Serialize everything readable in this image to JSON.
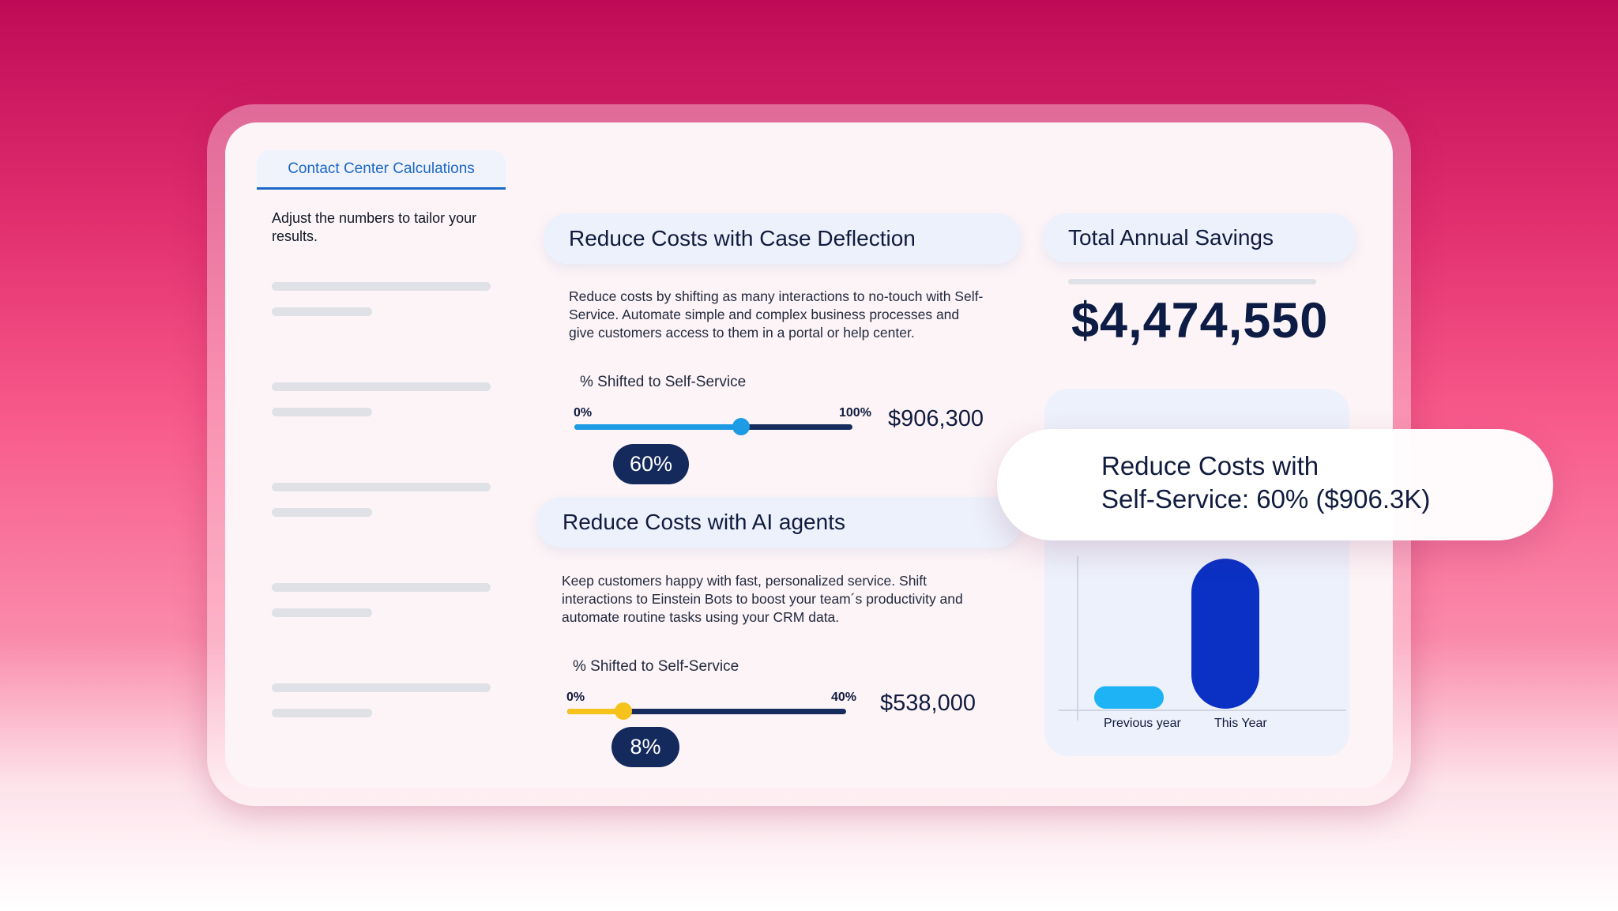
{
  "tab": {
    "label": "Contact Center Calculations"
  },
  "sidebar": {
    "intro": "Adjust the numbers to tailor your results."
  },
  "case_deflection": {
    "title": "Reduce Costs with Case Deflection",
    "description": "Reduce costs by shifting as many interactions to no-touch with Self-Service. Automate simple and complex business processes and give customers access to them in a portal or help center.",
    "slider_label": "% Shifted to Self-Service",
    "min_label": "0%",
    "max_label": "100%",
    "amount": "$906,300",
    "value_label": "60%",
    "value_fraction": 0.6,
    "color": "#1d9be4"
  },
  "ai_agents": {
    "title": "Reduce Costs with AI agents",
    "description": "Keep customers happy with fast, personalized service. Shift interactions to Einstein Bots to boost your team´s productivity and automate routine tasks using your CRM data.",
    "slider_label": "% Shifted to Self-Service",
    "min_label": "0%",
    "max_label": "40%",
    "amount": "$538,000",
    "value_label": "8%",
    "value_fraction": 0.2,
    "color": "#f6c21c"
  },
  "total": {
    "title": "Total Annual Savings",
    "value": "$4,474,550"
  },
  "callout": {
    "line1": "Reduce Costs with",
    "line2": "Self-Service: 60% ($906.3K)"
  },
  "chart_data": {
    "type": "bar",
    "categories": [
      "Previous year",
      "This Year"
    ],
    "values": [
      0.15,
      1.0
    ],
    "colors": [
      "#1eb3f5",
      "#0a31c4"
    ]
  }
}
